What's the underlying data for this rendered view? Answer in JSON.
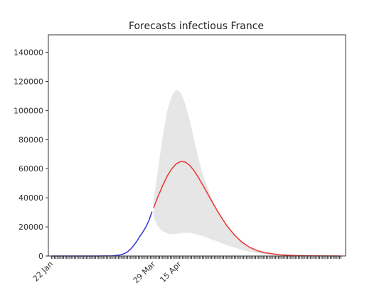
{
  "chart_data": {
    "type": "line",
    "title": "Forecasts infectious France",
    "xlabel": "",
    "ylabel": "",
    "x_tick_labels": [
      "22 Jan",
      "29 Mar",
      "15 Apr"
    ],
    "x_tick_days": [
      0,
      67,
      84
    ],
    "xlim_days": [
      -2,
      193
    ],
    "ylim": [
      0,
      152000
    ],
    "y_ticks": [
      0,
      20000,
      40000,
      60000,
      80000,
      100000,
      120000,
      140000
    ],
    "y_tick_labels": [
      "0",
      "20000",
      "40000",
      "60000",
      "80000",
      "100000",
      "120000",
      "140000"
    ],
    "grid": false,
    "series": [
      {
        "role": "observed",
        "color": "#3333dd",
        "x_days": [
          0,
          10,
          20,
          30,
          35,
          40,
          42,
          44,
          46,
          48,
          50,
          52,
          54,
          56,
          58,
          60,
          62,
          64,
          66
        ],
        "values": [
          0,
          0,
          0,
          0,
          50,
          150,
          300,
          600,
          1000,
          1700,
          3000,
          4800,
          7200,
          10000,
          13500,
          16500,
          20000,
          24500,
          30500
        ]
      },
      {
        "role": "forecast",
        "color": "#ee3333",
        "x_days": [
          67,
          70,
          73,
          76,
          79,
          82,
          85,
          88,
          91,
          94,
          97,
          100,
          105,
          110,
          115,
          120,
          125,
          130,
          135,
          140,
          150,
          160,
          170,
          180,
          190
        ],
        "values": [
          33000,
          41000,
          48500,
          55000,
          60000,
          63500,
          65000,
          64500,
          62000,
          58000,
          53000,
          47500,
          38000,
          29000,
          21000,
          14500,
          9500,
          6000,
          3700,
          2200,
          800,
          300,
          100,
          40,
          10
        ]
      }
    ],
    "band": {
      "color": "#e6e6e6",
      "x_days": [
        67,
        70,
        73,
        76,
        79,
        82,
        85,
        88,
        91,
        94,
        97,
        100,
        105,
        110,
        115,
        120,
        125,
        130,
        135,
        140,
        150,
        160,
        170,
        180,
        190
      ],
      "upper": [
        38000,
        60000,
        82000,
        100000,
        110000,
        114500,
        112000,
        104000,
        92000,
        78000,
        65000,
        54000,
        40000,
        29000,
        21000,
        14500,
        9500,
        6000,
        3700,
        2200,
        800,
        300,
        100,
        40,
        10
      ],
      "lower": [
        27000,
        20000,
        17000,
        15500,
        15000,
        15200,
        15600,
        16000,
        15800,
        15200,
        14300,
        13500,
        11500,
        9500,
        7500,
        5800,
        4200,
        3000,
        2000,
        1300,
        500,
        200,
        70,
        30,
        8
      ]
    }
  }
}
